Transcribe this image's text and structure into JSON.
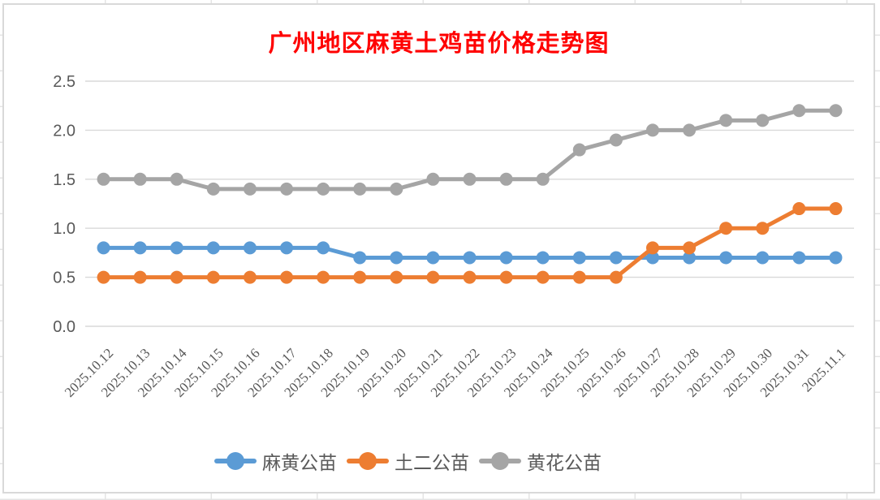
{
  "chart_data": {
    "type": "line",
    "title": "广州地区麻黄土鸡苗价格走势图",
    "title_color": "#FF0000",
    "xlabel": "",
    "ylabel": "",
    "categories": [
      "2025.10.12",
      "2025.10.13",
      "2025.10.14",
      "2025.10.15",
      "2025.10.16",
      "2025.10.17",
      "2025.10.18",
      "2025.10.19",
      "2025.10.20",
      "2025.10.21",
      "2025.10.22",
      "2025.10.23",
      "2025.10.24",
      "2025.10.25",
      "2025.10.26",
      "2025.10.27",
      "2025.10.28",
      "2025.10.29",
      "2025.10.30",
      "2025.10.31",
      "2025.11.1"
    ],
    "series": [
      {
        "name": "麻黄公苗",
        "color": "#5B9BD5",
        "values": [
          0.8,
          0.8,
          0.8,
          0.8,
          0.8,
          0.8,
          0.8,
          0.7,
          0.7,
          0.7,
          0.7,
          0.7,
          0.7,
          0.7,
          0.7,
          0.7,
          0.7,
          0.7,
          0.7,
          0.7,
          0.7
        ]
      },
      {
        "name": "土二公苗",
        "color": "#ED7D31",
        "values": [
          0.5,
          0.5,
          0.5,
          0.5,
          0.5,
          0.5,
          0.5,
          0.5,
          0.5,
          0.5,
          0.5,
          0.5,
          0.5,
          0.5,
          0.5,
          0.8,
          0.8,
          1.0,
          1.0,
          1.2,
          1.2
        ]
      },
      {
        "name": "黄花公苗",
        "color": "#A5A5A5",
        "values": [
          1.5,
          1.5,
          1.5,
          1.4,
          1.4,
          1.4,
          1.4,
          1.4,
          1.4,
          1.5,
          1.5,
          1.5,
          1.5,
          1.8,
          1.9,
          2.0,
          2.0,
          2.1,
          2.1,
          2.2,
          2.2
        ]
      }
    ],
    "yticks": [
      "0.0",
      "0.5",
      "1.0",
      "1.5",
      "2.0",
      "2.5"
    ],
    "ylim": [
      0,
      2.5
    ],
    "grid": true,
    "legend_position": "bottom",
    "colors": {
      "axis_text": "#595959",
      "gridline": "#D9D9D9",
      "chart_border": "#D9D9D9"
    }
  }
}
